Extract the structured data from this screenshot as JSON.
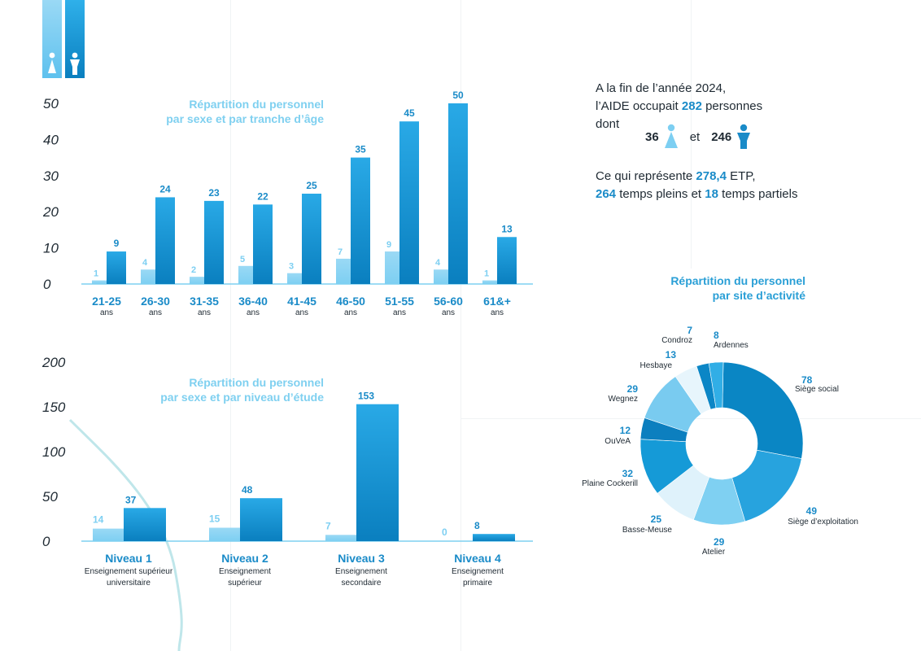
{
  "intro": {
    "line1": "A la fin de l’année 2024,",
    "line2_pre": "l’AIDE occupait ",
    "line2_num": "282",
    "line2_post": " personnes",
    "line3": "dont",
    "women": "36",
    "and": "et",
    "men": "246"
  },
  "etp": {
    "pre": "Ce qui représente ",
    "etp_num": "278,4",
    "etp_post": " ETP,",
    "full_num": "264",
    "full_post": " temps pleins et ",
    "part_num": "18",
    "part_post": " temps partiels"
  },
  "colors": {
    "light": "#7dcff2",
    "dark_top": "#29a9e6",
    "dark_bottom": "#0a7fbf",
    "axis": "#7fd0f0"
  },
  "chart_data": [
    {
      "type": "bar",
      "title": "Répartition du personnel par sexe et par tranche d’âge",
      "title_lines": [
        "Répartition du personnel",
        "par sexe et par tranche d’âge"
      ],
      "categories": [
        "21-25",
        "26-30",
        "31-35",
        "36-40",
        "41-45",
        "46-50",
        "51-55",
        "56-60",
        "61&+"
      ],
      "category_sub": "ans",
      "series": [
        {
          "key": "women",
          "values": [
            1,
            4,
            2,
            5,
            3,
            7,
            9,
            4,
            1
          ]
        },
        {
          "key": "men",
          "values": [
            9,
            24,
            23,
            22,
            25,
            35,
            45,
            50,
            13
          ]
        }
      ],
      "yticks": [
        0,
        10,
        20,
        30,
        40,
        50
      ],
      "ylim": [
        0,
        50
      ]
    },
    {
      "type": "bar",
      "title": "Répartition du personnel par sexe et par niveau d’étude",
      "title_lines": [
        "Répartition du personnel",
        "par sexe et par niveau d’étude"
      ],
      "categories": [
        "Niveau 1",
        "Niveau 2",
        "Niveau 3",
        "Niveau 4"
      ],
      "category_subs": [
        [
          "Enseignement supérieur",
          "universitaire"
        ],
        [
          "Enseignement",
          "supérieur"
        ],
        [
          "Enseignement",
          "secondaire"
        ],
        [
          "Enseignement",
          "primaire"
        ]
      ],
      "series": [
        {
          "key": "women",
          "values": [
            14,
            15,
            7,
            0
          ]
        },
        {
          "key": "men",
          "values": [
            37,
            48,
            153,
            8
          ]
        }
      ],
      "yticks": [
        0,
        50,
        100,
        150,
        200
      ],
      "ylim": [
        0,
        200
      ]
    },
    {
      "type": "pie",
      "title": "Répartition du personnel par site d’activité",
      "title_lines": [
        "Répartition du personnel",
        "par site d’activité"
      ],
      "slices": [
        {
          "label": "Siège social",
          "value": 78,
          "color": "#0a86c4"
        },
        {
          "label": "Siège d’exploitation",
          "value": 49,
          "color": "#27a3de"
        },
        {
          "label": "Atelier",
          "value": 29,
          "color": "#7fd0f2"
        },
        {
          "label": "Basse-Meuse",
          "value": 25,
          "color": "#dff2fb"
        },
        {
          "label": "Plaine Cockerill",
          "value": 32,
          "color": "#159ad7"
        },
        {
          "label": "OuVeA",
          "value": 12,
          "color": "#0c7fbf"
        },
        {
          "label": "Wegnez",
          "value": 29,
          "color": "#79cbf0"
        },
        {
          "label": "Hesbaye",
          "value": 13,
          "color": "#e7f5fc"
        },
        {
          "label": "Condroz",
          "value": 7,
          "color": "#0b86c6"
        },
        {
          "label": "Ardennes",
          "value": 8,
          "color": "#31aee6"
        }
      ]
    }
  ]
}
